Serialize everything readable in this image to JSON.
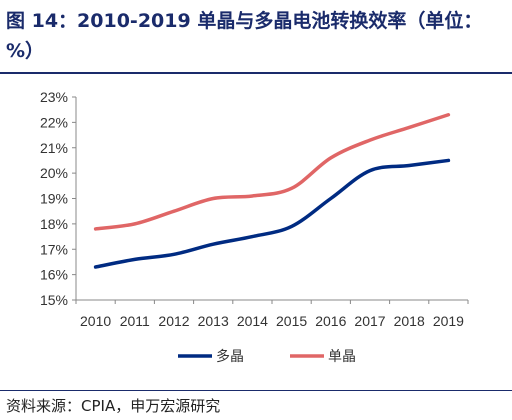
{
  "header": {
    "title": "图 14：2010-2019 单晶与多晶电池转换效率（单位：%）"
  },
  "footer": {
    "source": "资料来源：CPIA，申万宏源研究"
  },
  "chart_data": {
    "type": "line",
    "title": "",
    "xlabel": "",
    "ylabel": "",
    "x": [
      "2010",
      "2011",
      "2012",
      "2013",
      "2014",
      "2015",
      "2016",
      "2017",
      "2018",
      "2019"
    ],
    "ylim": [
      15,
      23
    ],
    "yticks": [
      15,
      16,
      17,
      18,
      19,
      20,
      21,
      22,
      23
    ],
    "ytick_labels": [
      "15%",
      "16%",
      "17%",
      "18%",
      "19%",
      "20%",
      "21%",
      "22%",
      "23%"
    ],
    "grid": false,
    "legend_position": "bottom",
    "series": [
      {
        "name": "多晶",
        "color": "#002b82",
        "values": [
          16.3,
          16.6,
          16.8,
          17.2,
          17.5,
          17.9,
          19.0,
          20.1,
          20.3,
          20.5
        ]
      },
      {
        "name": "单晶",
        "color": "#e06666",
        "values": [
          17.8,
          18.0,
          18.5,
          19.0,
          19.1,
          19.4,
          20.6,
          21.3,
          21.8,
          22.3
        ]
      }
    ]
  }
}
